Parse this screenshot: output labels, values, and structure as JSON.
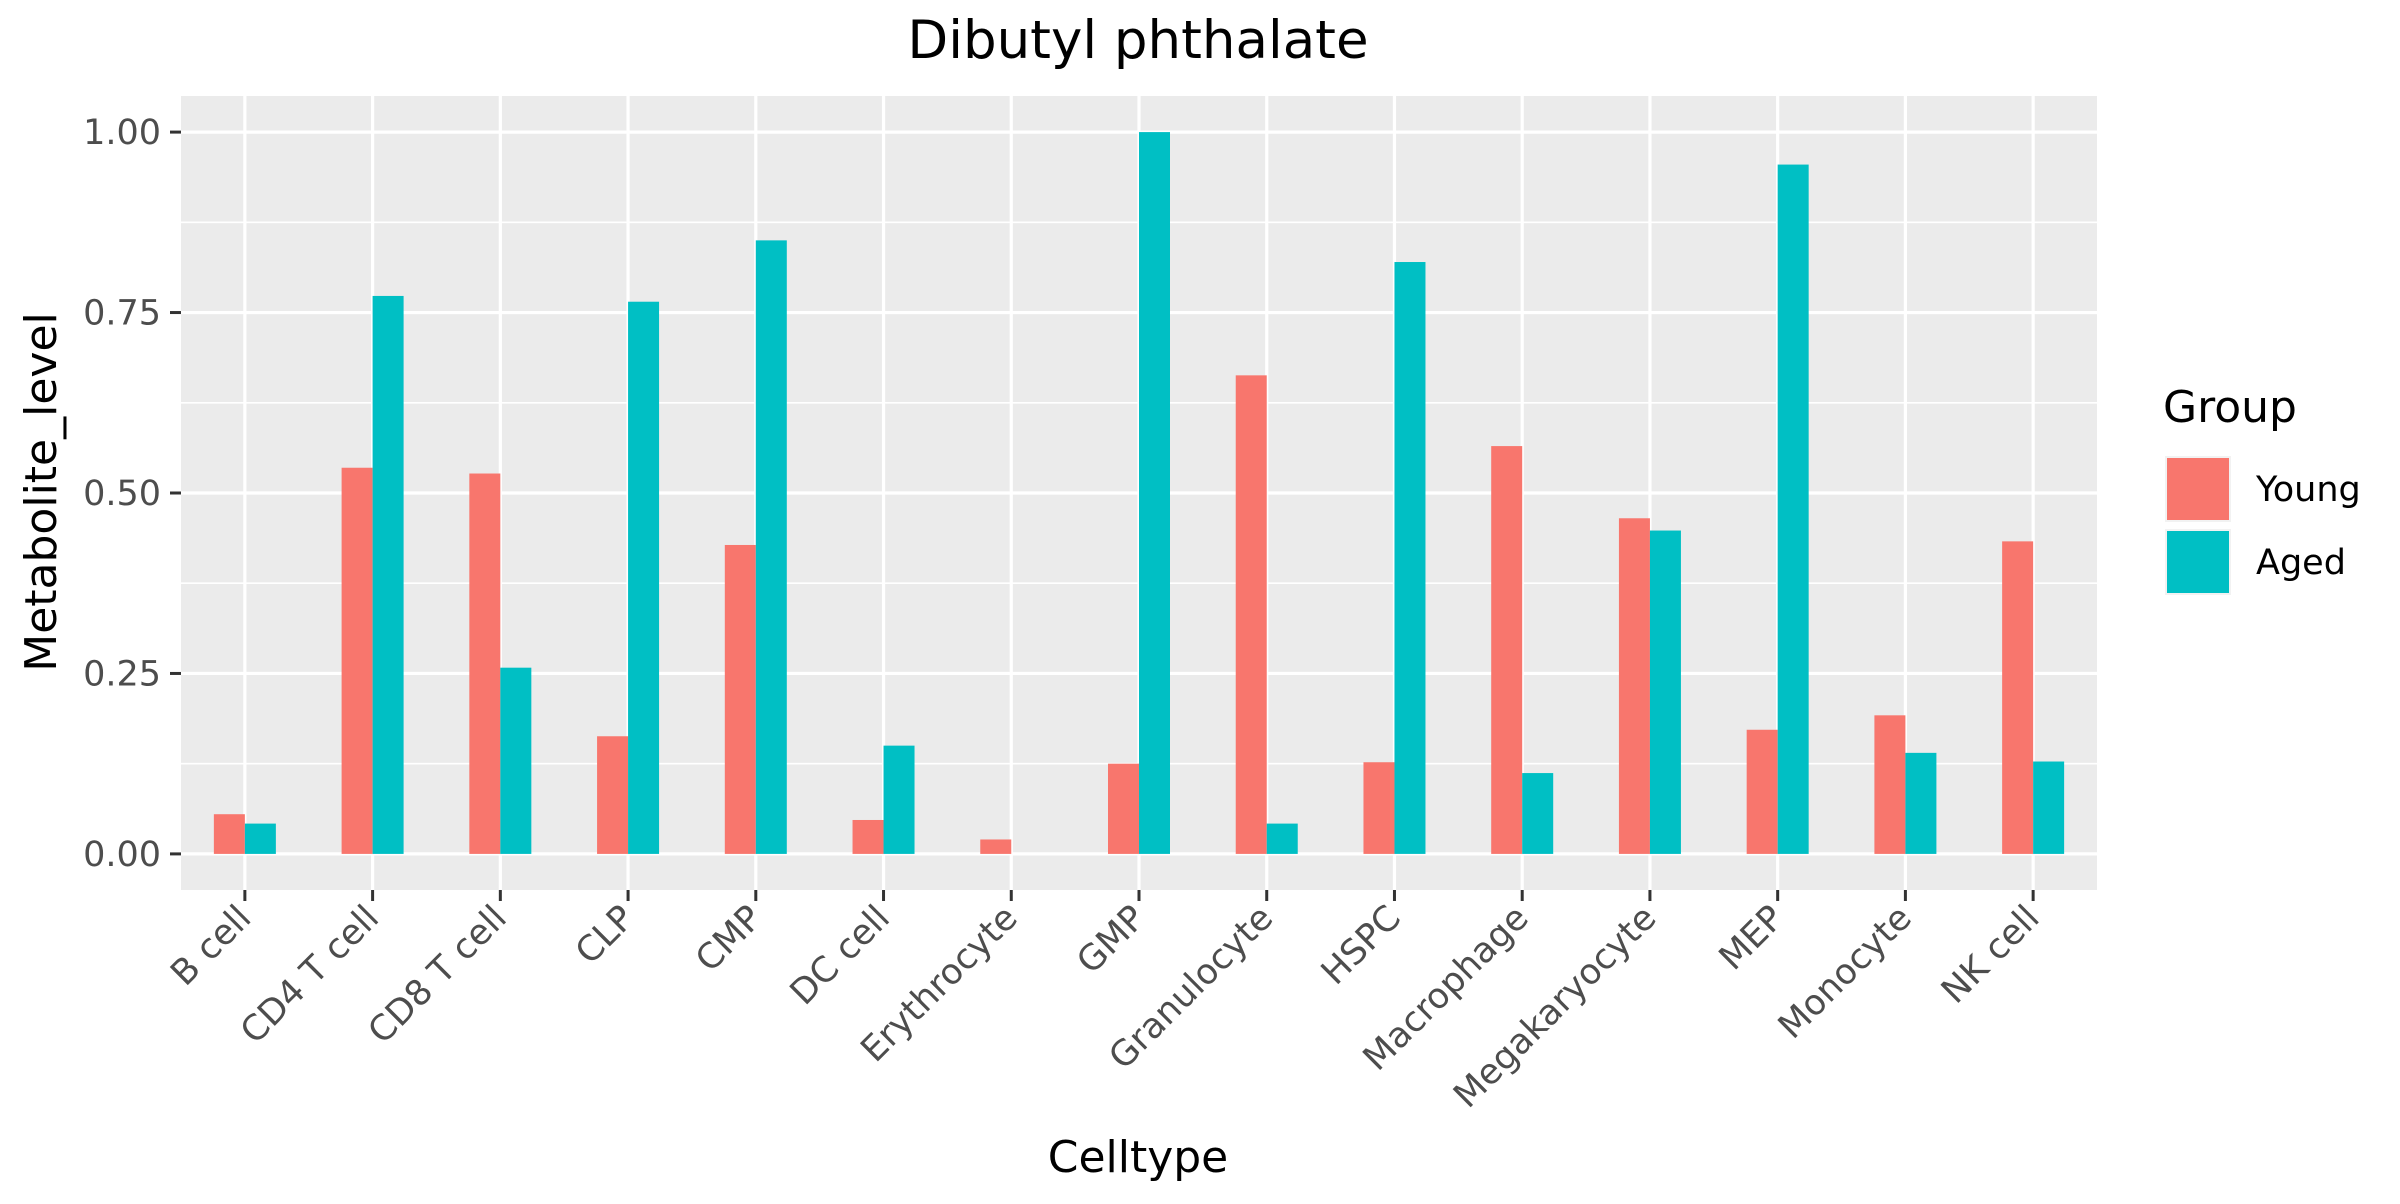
{
  "chart_data": {
    "type": "bar",
    "title": "Dibutyl phthalate",
    "xlabel": "Celltype",
    "ylabel": "Metabolite_level",
    "ylim": [
      -0.05,
      1.05
    ],
    "yticks": [
      0.0,
      0.25,
      0.5,
      0.75,
      1.0
    ],
    "ytick_labels": [
      "0.00",
      "0.25",
      "0.50",
      "0.75",
      "1.00"
    ],
    "grid": true,
    "legend_position": "right",
    "legend_title": "Group",
    "categories": [
      "B cell",
      "CD4 T cell",
      "CD8 T cell",
      "CLP",
      "CMP",
      "DC cell",
      "Erythrocyte",
      "GMP",
      "Granulocyte",
      "HSPC",
      "Macrophage",
      "Megakaryocyte",
      "MEP",
      "Monocyte",
      "NK cell"
    ],
    "series": [
      {
        "name": "Young",
        "color": "#F8766D",
        "values": [
          0.055,
          0.535,
          0.527,
          0.163,
          0.428,
          0.047,
          0.02,
          0.125,
          0.663,
          0.127,
          0.565,
          0.465,
          0.172,
          0.192,
          0.433
        ]
      },
      {
        "name": "Aged",
        "color": "#00BFC4",
        "values": [
          0.042,
          0.773,
          0.258,
          0.765,
          0.85,
          0.15,
          0.0,
          1.0,
          0.042,
          0.82,
          0.112,
          0.448,
          0.955,
          0.14,
          0.128
        ]
      }
    ]
  }
}
